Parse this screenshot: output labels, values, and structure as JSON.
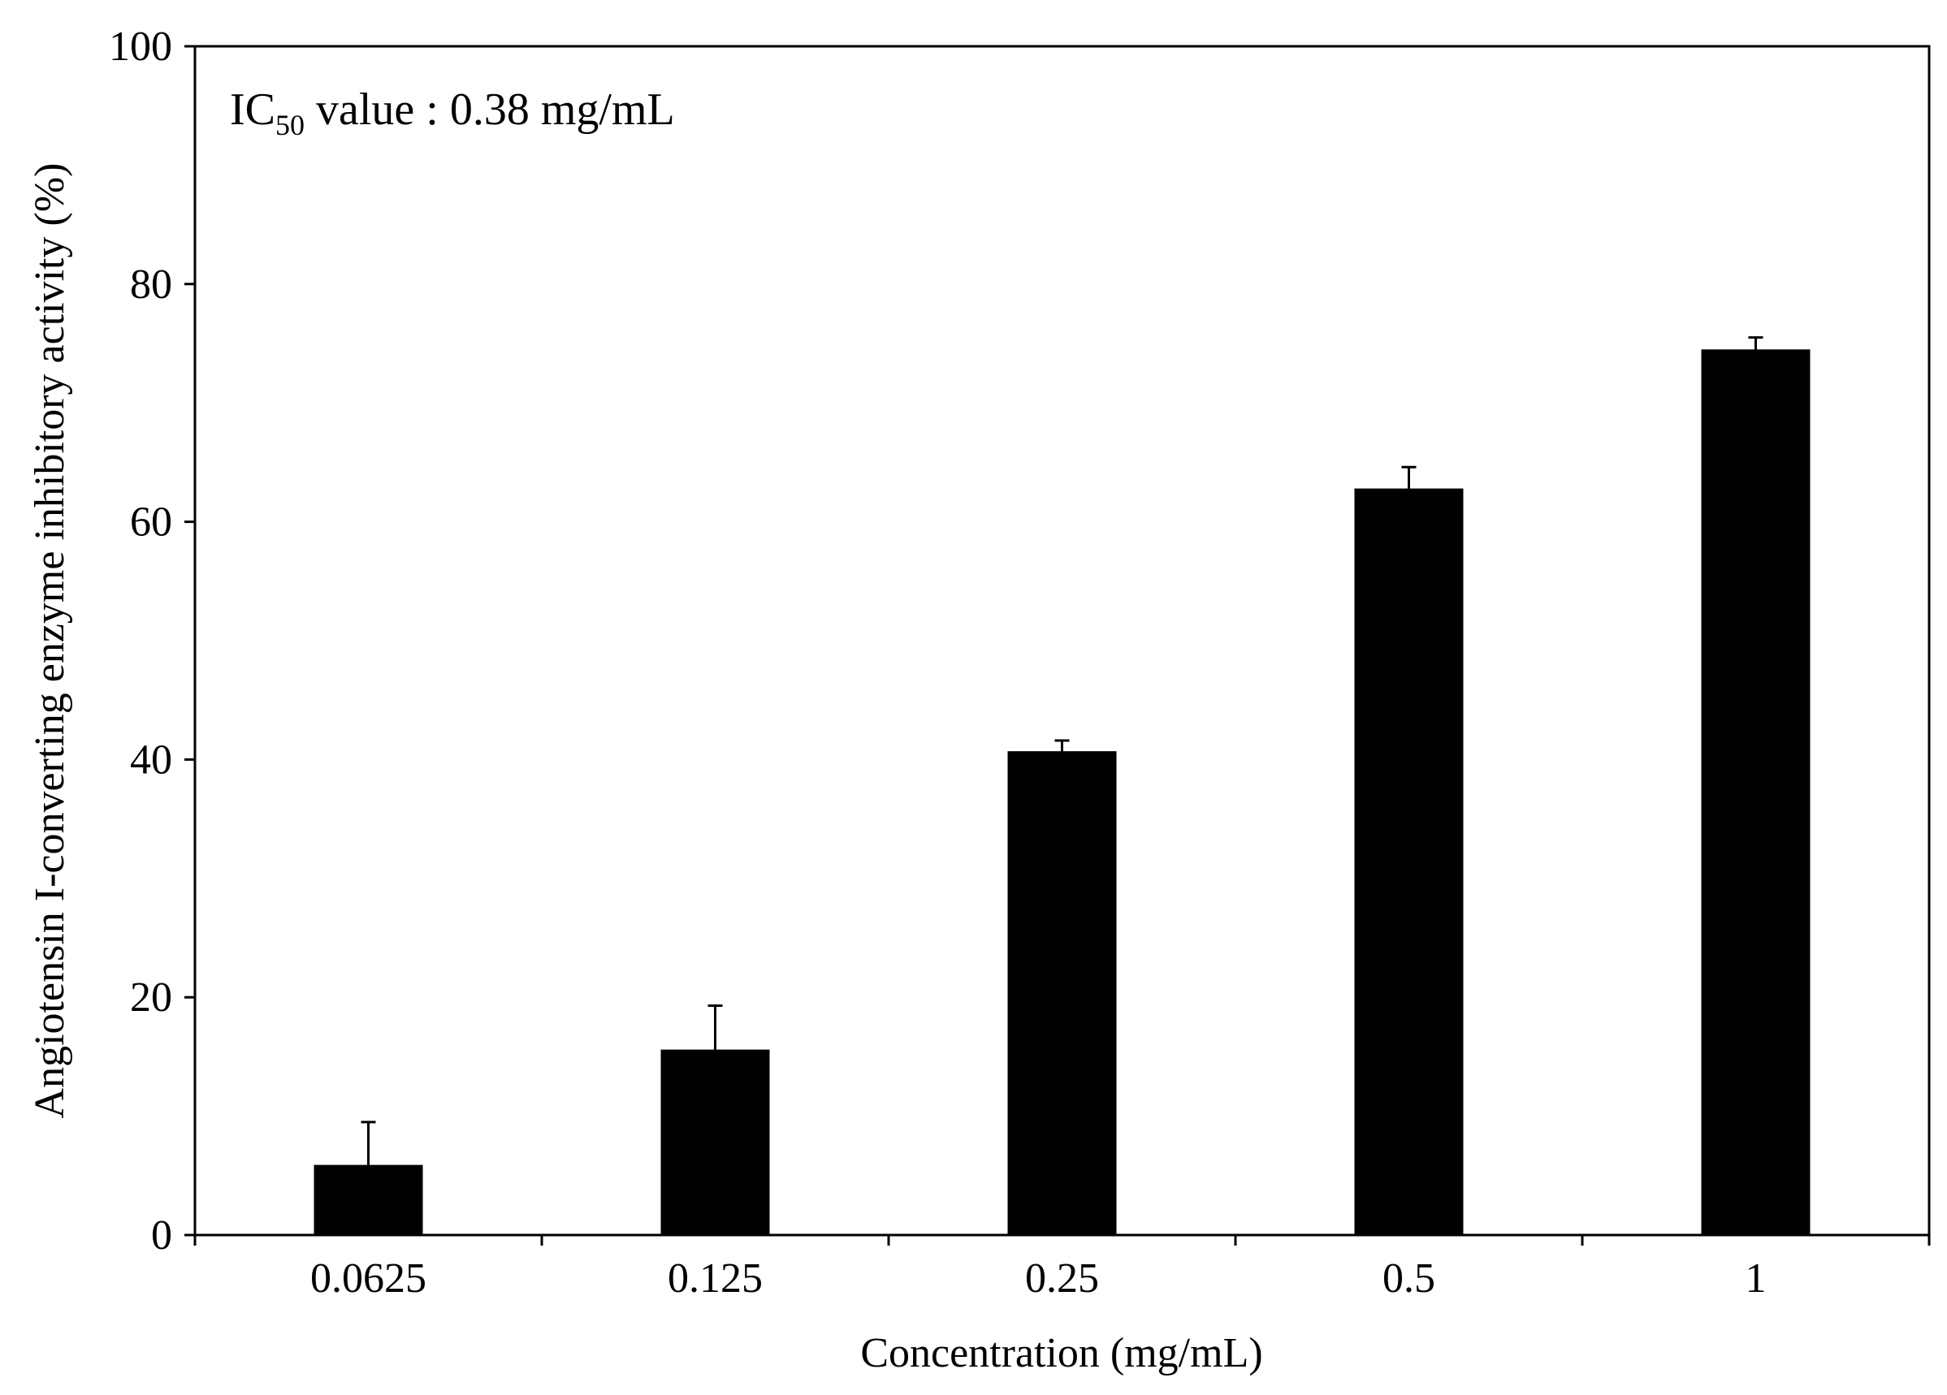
{
  "chart_data": {
    "type": "bar",
    "title": "",
    "categories": [
      "0.0625",
      "0.125",
      "0.25",
      "0.5",
      "1"
    ],
    "values": [
      5.9,
      15.6,
      40.7,
      62.8,
      74.5
    ],
    "error_plus": [
      3.6,
      3.7,
      0.9,
      1.8,
      1.0
    ],
    "error_minus": [
      3.6,
      3.7,
      0.9,
      1.8,
      1.0
    ],
    "xlabel": "Concentration (mg/mL)",
    "ylabel": "Angiotensin I-converting enzyme inhibitory activity (%)",
    "ylim": [
      0,
      100
    ],
    "yticks": [
      "0",
      "20",
      "40",
      "60",
      "80",
      "100"
    ],
    "ytick_values": [
      0,
      20,
      40,
      60,
      80,
      100
    ],
    "grid": false,
    "bar_color": "#000000",
    "annotation": {
      "prefix": "IC",
      "subscript": "50",
      "suffix": " value : 0.38 mg/mL"
    }
  }
}
